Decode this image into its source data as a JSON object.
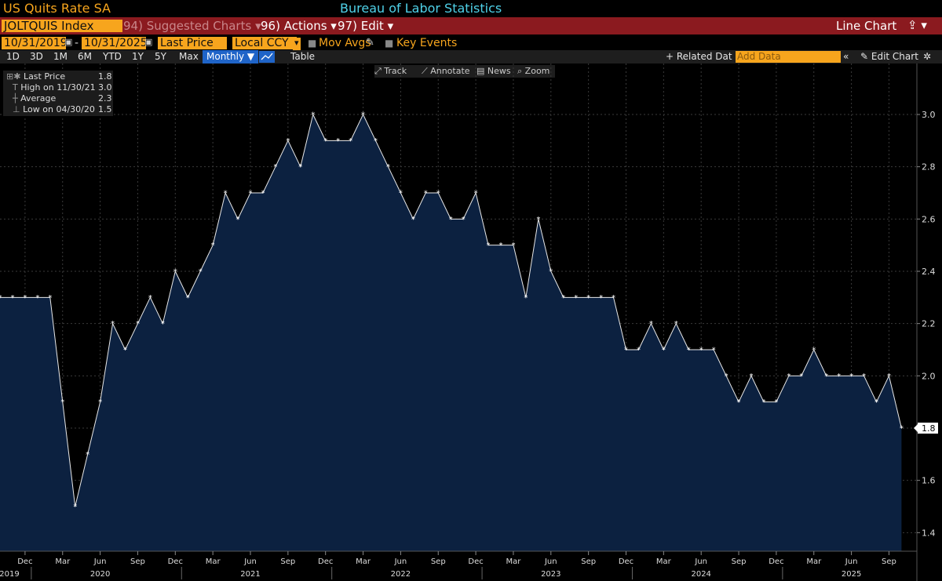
{
  "header": {
    "title": "US Quits Rate SA",
    "source": "Bureau of Labor Statistics"
  },
  "toolbar": {
    "ticker": "JOLTQUIS Index",
    "suggested_num": "94)",
    "suggested_label": "Suggested Charts",
    "actions_num": "96)",
    "actions_label": "Actions",
    "edit_num": "97)",
    "edit_label": "Edit",
    "chart_type": "Line Chart"
  },
  "controls": {
    "start_date": "10/31/2019",
    "dash": "-",
    "end_date": "10/31/2025",
    "field": "Last Price",
    "currency": "Local CCY",
    "mov_avgs": "Mov Avgs",
    "key_events": "Key Events"
  },
  "periods": [
    "1D",
    "3D",
    "1M",
    "6M",
    "YTD",
    "1Y",
    "5Y",
    "Max"
  ],
  "frequency": "Monthly",
  "table_label": "Table",
  "related_label": "Related Dat",
  "add_data_placeholder": "Add Data",
  "edit_chart_label": "Edit Chart",
  "chart_tools": {
    "track": "Track",
    "annotate": "Annotate",
    "news": "News",
    "zoom": "Zoom"
  },
  "legend": {
    "last_label": "Last Price",
    "last_value": "1.8",
    "high_label": "High on 11/30/21",
    "high_value": "3.0",
    "avg_label": "Average",
    "avg_value": "2.3",
    "low_label": "Low on 04/30/20",
    "low_value": "1.5"
  },
  "chart_data": {
    "type": "area",
    "x_start": "2019-10",
    "x": [
      "2019-10",
      "2019-11",
      "2019-12",
      "2020-01",
      "2020-02",
      "2020-03",
      "2020-04",
      "2020-05",
      "2020-06",
      "2020-07",
      "2020-08",
      "2020-09",
      "2020-10",
      "2020-11",
      "2020-12",
      "2021-01",
      "2021-02",
      "2021-03",
      "2021-04",
      "2021-05",
      "2021-06",
      "2021-07",
      "2021-08",
      "2021-09",
      "2021-10",
      "2021-11",
      "2021-12",
      "2022-01",
      "2022-02",
      "2022-03",
      "2022-04",
      "2022-05",
      "2022-06",
      "2022-07",
      "2022-08",
      "2022-09",
      "2022-10",
      "2022-11",
      "2022-12",
      "2023-01",
      "2023-02",
      "2023-03",
      "2023-04",
      "2023-05",
      "2023-06",
      "2023-07",
      "2023-08",
      "2023-09",
      "2023-10",
      "2023-11",
      "2023-12",
      "2024-01",
      "2024-02",
      "2024-03",
      "2024-04",
      "2024-05",
      "2024-06",
      "2024-07",
      "2024-08",
      "2024-09",
      "2024-10",
      "2024-11",
      "2024-12",
      "2025-01",
      "2025-02",
      "2025-03",
      "2025-04",
      "2025-05",
      "2025-06",
      "2025-07",
      "2025-08",
      "2025-09",
      "2025-10"
    ],
    "values": [
      2.3,
      2.3,
      2.3,
      2.3,
      2.3,
      1.9,
      1.5,
      1.7,
      1.9,
      2.2,
      2.1,
      2.2,
      2.3,
      2.2,
      2.4,
      2.3,
      2.4,
      2.5,
      2.7,
      2.6,
      2.7,
      2.7,
      2.8,
      2.9,
      2.8,
      3.0,
      2.9,
      2.9,
      2.9,
      3.0,
      2.9,
      2.8,
      2.7,
      2.6,
      2.7,
      2.7,
      2.6,
      2.6,
      2.7,
      2.5,
      2.5,
      2.5,
      2.3,
      2.6,
      2.4,
      2.3,
      2.3,
      2.3,
      2.3,
      2.3,
      2.1,
      2.1,
      2.2,
      2.1,
      2.2,
      2.1,
      2.1,
      2.1,
      2.0,
      1.9,
      2.0,
      1.9,
      1.9,
      2.0,
      2.0,
      2.1,
      2.0,
      2.0,
      2.0,
      2.0,
      1.9,
      2.0,
      1.8
    ],
    "ylim": [
      1.35,
      3.15
    ],
    "yticks": [
      "1.4",
      "1.6",
      "1.8",
      "2.0",
      "2.2",
      "2.4",
      "2.6",
      "2.8",
      "3.0"
    ],
    "month_ticks": [
      "Dec",
      "Mar",
      "Jun",
      "Sep",
      "Dec",
      "Mar",
      "Jun",
      "Sep",
      "Dec",
      "Mar",
      "Jun",
      "Sep",
      "Dec",
      "Mar",
      "Jun",
      "Sep",
      "Dec",
      "Mar",
      "Jun",
      "Sep",
      "Dec",
      "Mar",
      "Jun",
      "Sep"
    ],
    "year_ticks": [
      "2019",
      "2020",
      "2021",
      "2022",
      "2023",
      "2024",
      "2025"
    ],
    "last_value_label": "1.8",
    "line_color": "#e8e8e8",
    "fill_color": "#0c2140"
  }
}
